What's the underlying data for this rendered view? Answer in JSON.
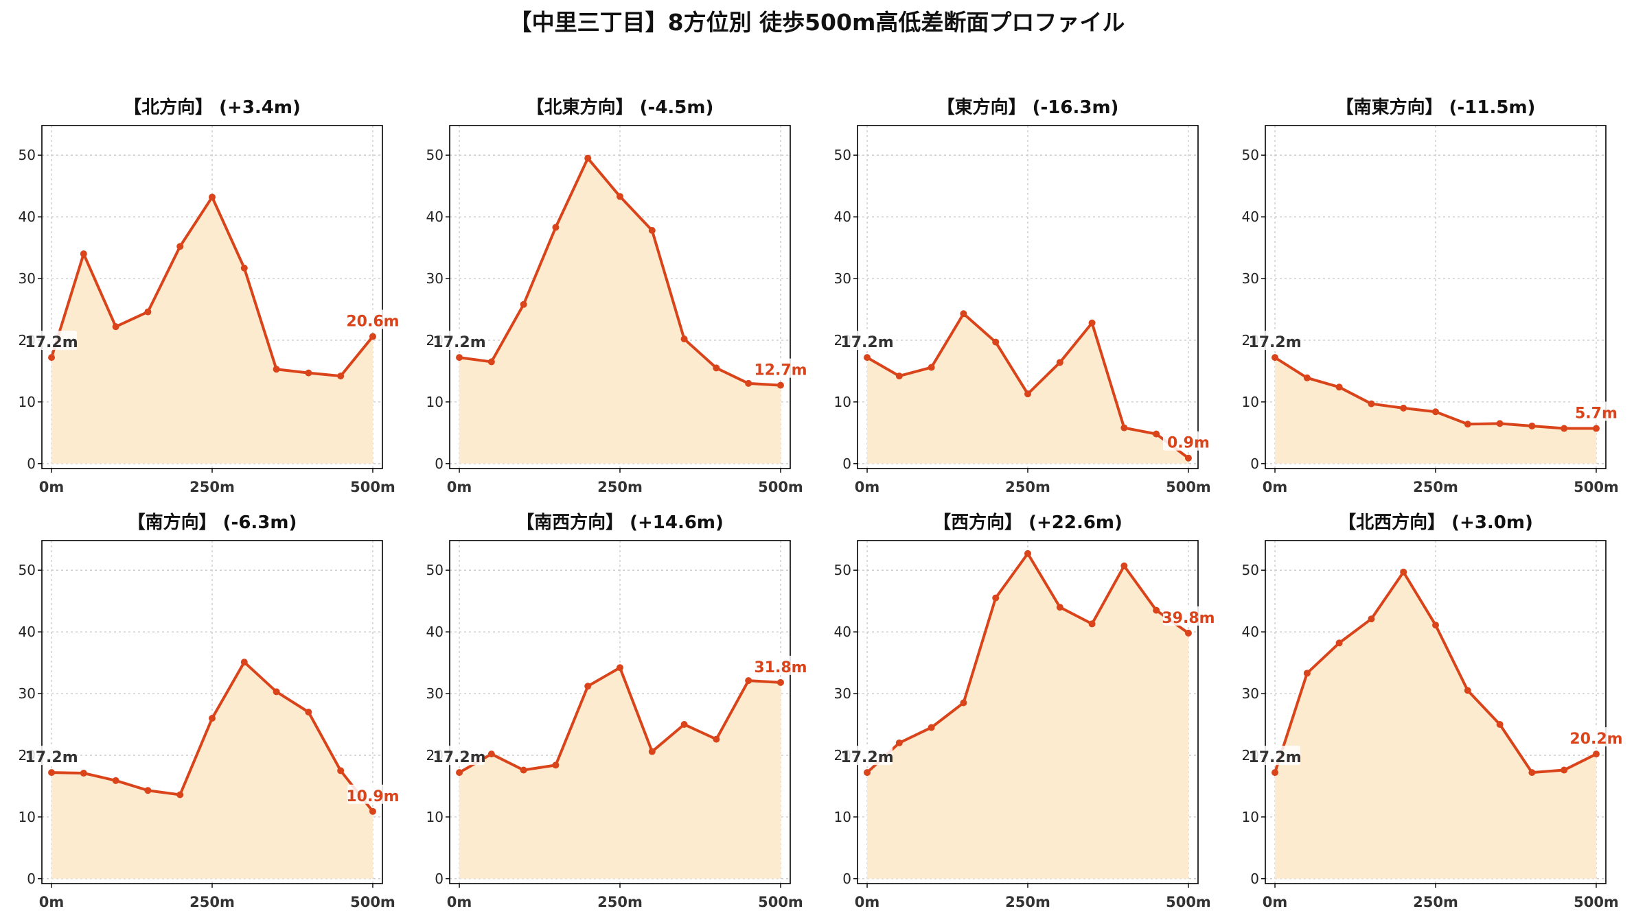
{
  "title": "【中里三丁目】8方位別 徒歩500m高低差断面プロファイル",
  "style": {
    "line_color": "#d9441b",
    "fill_color": "#fdebd0",
    "grid_color": "#c8c8c8",
    "label_box_color": "#ffffff"
  },
  "chart_data": [
    {
      "type": "area",
      "title": "【北方向】 (+3.4m)",
      "x": [
        0,
        50,
        100,
        150,
        200,
        250,
        300,
        350,
        400,
        450,
        500
      ],
      "y": [
        17.2,
        34.0,
        22.2,
        24.6,
        35.2,
        43.2,
        31.7,
        15.3,
        14.7,
        14.2,
        20.6
      ],
      "xticks": [
        "0m",
        "250m",
        "500m"
      ],
      "yticks": [
        0,
        10,
        20,
        30,
        40,
        50
      ],
      "xlim": [
        -15,
        515
      ],
      "ylim": [
        -0.8,
        54.8
      ],
      "start_label": "17.2m",
      "end_label": "20.6m",
      "grid": true
    },
    {
      "type": "area",
      "title": "【北東方向】 (-4.5m)",
      "x": [
        0,
        50,
        100,
        150,
        200,
        250,
        300,
        350,
        400,
        450,
        500
      ],
      "y": [
        17.2,
        16.5,
        25.8,
        38.3,
        49.5,
        43.3,
        37.8,
        20.2,
        15.5,
        13.0,
        12.7
      ],
      "xticks": [
        "0m",
        "250m",
        "500m"
      ],
      "yticks": [
        0,
        10,
        20,
        30,
        40,
        50
      ],
      "xlim": [
        -15,
        515
      ],
      "ylim": [
        -0.8,
        54.8
      ],
      "start_label": "17.2m",
      "end_label": "12.7m",
      "grid": true
    },
    {
      "type": "area",
      "title": "【東方向】 (-16.3m)",
      "x": [
        0,
        50,
        100,
        150,
        200,
        250,
        300,
        350,
        400,
        450,
        500
      ],
      "y": [
        17.2,
        14.2,
        15.6,
        24.3,
        19.7,
        11.3,
        16.4,
        22.8,
        5.8,
        4.8,
        0.9
      ],
      "xticks": [
        "0m",
        "250m",
        "500m"
      ],
      "yticks": [
        0,
        10,
        20,
        30,
        40,
        50
      ],
      "xlim": [
        -15,
        515
      ],
      "ylim": [
        -0.8,
        54.8
      ],
      "start_label": "17.2m",
      "end_label": "0.9m",
      "grid": true
    },
    {
      "type": "area",
      "title": "【南東方向】 (-11.5m)",
      "x": [
        0,
        50,
        100,
        150,
        200,
        250,
        300,
        350,
        400,
        450,
        500
      ],
      "y": [
        17.2,
        13.9,
        12.4,
        9.7,
        9.0,
        8.4,
        6.4,
        6.5,
        6.1,
        5.7,
        5.7
      ],
      "xticks": [
        "0m",
        "250m",
        "500m"
      ],
      "yticks": [
        0,
        10,
        20,
        30,
        40,
        50
      ],
      "xlim": [
        -15,
        515
      ],
      "ylim": [
        -0.8,
        54.8
      ],
      "start_label": "17.2m",
      "end_label": "5.7m",
      "grid": true
    },
    {
      "type": "area",
      "title": "【南方向】 (-6.3m)",
      "x": [
        0,
        50,
        100,
        150,
        200,
        250,
        300,
        350,
        400,
        450,
        500
      ],
      "y": [
        17.2,
        17.1,
        15.9,
        14.3,
        13.6,
        26.0,
        35.1,
        30.3,
        27.0,
        17.5,
        10.9
      ],
      "xticks": [
        "0m",
        "250m",
        "500m"
      ],
      "yticks": [
        0,
        10,
        20,
        30,
        40,
        50
      ],
      "xlim": [
        -15,
        515
      ],
      "ylim": [
        -0.8,
        54.8
      ],
      "start_label": "17.2m",
      "end_label": "10.9m",
      "grid": true
    },
    {
      "type": "area",
      "title": "【南西方向】 (+14.6m)",
      "x": [
        0,
        50,
        100,
        150,
        200,
        250,
        300,
        350,
        400,
        450,
        500
      ],
      "y": [
        17.2,
        20.2,
        17.6,
        18.4,
        31.2,
        34.2,
        20.6,
        25.0,
        22.6,
        32.1,
        31.8
      ],
      "xticks": [
        "0m",
        "250m",
        "500m"
      ],
      "yticks": [
        0,
        10,
        20,
        30,
        40,
        50
      ],
      "xlim": [
        -15,
        515
      ],
      "ylim": [
        -0.8,
        54.8
      ],
      "start_label": "17.2m",
      "end_label": "31.8m",
      "grid": true
    },
    {
      "type": "area",
      "title": "【西方向】 (+22.6m)",
      "x": [
        0,
        50,
        100,
        150,
        200,
        250,
        300,
        350,
        400,
        450,
        500
      ],
      "y": [
        17.2,
        22.0,
        24.5,
        28.5,
        45.5,
        52.7,
        44.0,
        41.3,
        50.7,
        43.5,
        39.8
      ],
      "xticks": [
        "0m",
        "250m",
        "500m"
      ],
      "yticks": [
        0,
        10,
        20,
        30,
        40,
        50
      ],
      "xlim": [
        -15,
        515
      ],
      "ylim": [
        -0.8,
        54.8
      ],
      "start_label": "17.2m",
      "end_label": "39.8m",
      "grid": true
    },
    {
      "type": "area",
      "title": "【北西方向】 (+3.0m)",
      "x": [
        0,
        50,
        100,
        150,
        200,
        250,
        300,
        350,
        400,
        450,
        500
      ],
      "y": [
        17.2,
        33.3,
        38.2,
        42.1,
        49.7,
        41.1,
        30.5,
        25.0,
        17.2,
        17.6,
        20.2
      ],
      "xticks": [
        "0m",
        "250m",
        "500m"
      ],
      "yticks": [
        0,
        10,
        20,
        30,
        40,
        50
      ],
      "xlim": [
        -15,
        515
      ],
      "ylim": [
        -0.8,
        54.8
      ],
      "start_label": "17.2m",
      "end_label": "20.2m",
      "grid": true
    }
  ]
}
